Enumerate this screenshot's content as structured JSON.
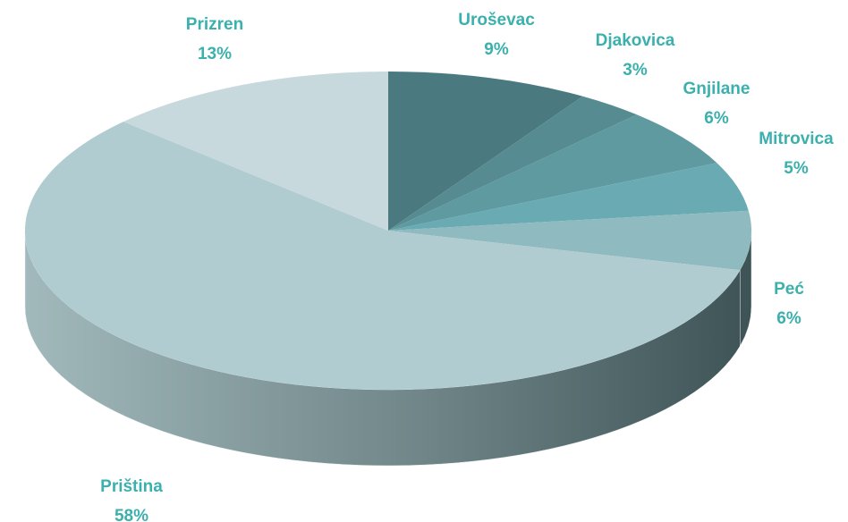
{
  "chart_data": {
    "type": "pie",
    "categories": [
      "Uroševac",
      "Djakovica",
      "Gnjilane",
      "Mitrovica",
      "Peć",
      "Priština",
      "Prizren"
    ],
    "values": [
      9,
      3,
      6,
      5,
      6,
      58,
      13
    ],
    "value_labels": [
      "9%",
      "3%",
      "6%",
      "5%",
      "6%",
      "58%",
      "13%"
    ],
    "colors": [
      "#4a7a80",
      "#568b92",
      "#5f9aa1",
      "#6aaab3",
      "#8fbac0",
      "#b0ccd0",
      "#c8d9de"
    ],
    "label_color": "#3bb0ad"
  }
}
